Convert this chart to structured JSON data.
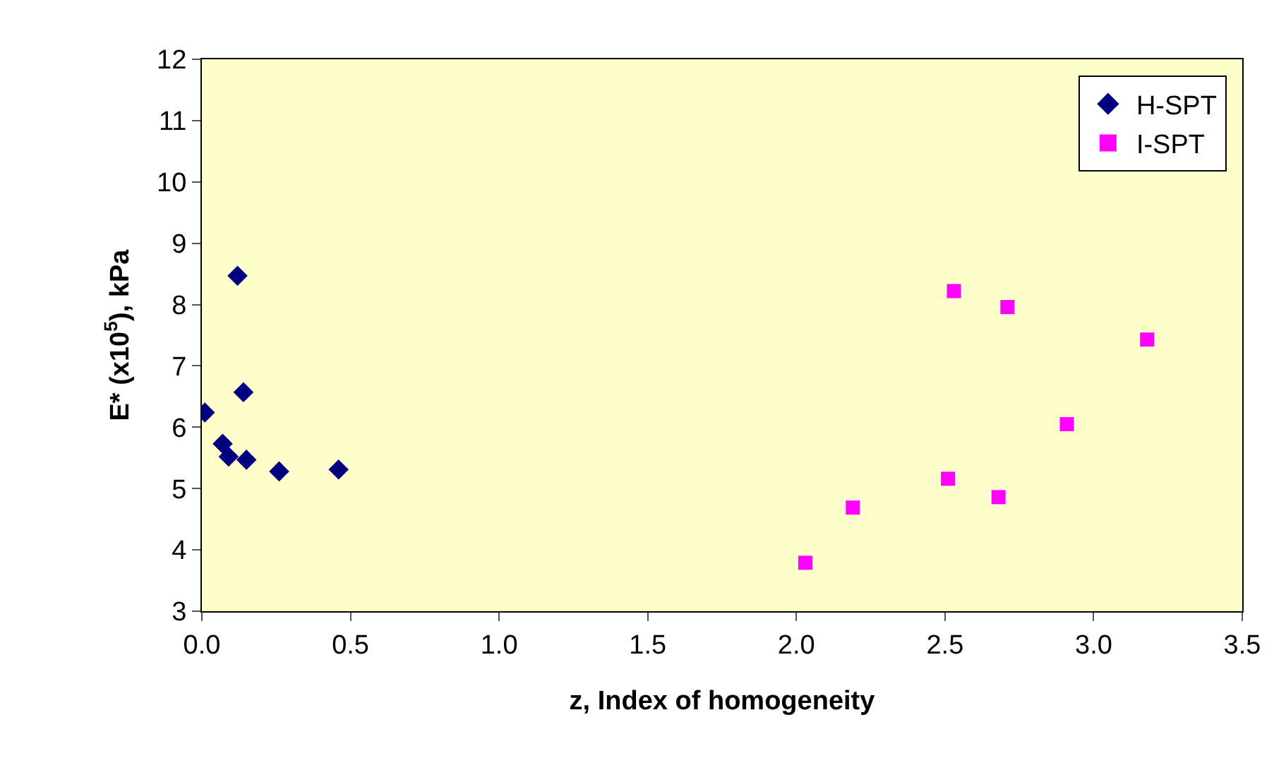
{
  "chart_data": {
    "type": "scatter",
    "xlabel": "z, Index of homogeneity",
    "ylabel": "E* (x10$^{5}$), kPa",
    "xlim": [
      0,
      3.5
    ],
    "xticks": [
      {
        "value": 0,
        "label": "0.0"
      },
      {
        "value": 0.5,
        "label": "0.5"
      },
      {
        "value": 1,
        "label": "1.0"
      },
      {
        "value": 1.5,
        "label": "1.5"
      },
      {
        "value": 2,
        "label": "2.0"
      },
      {
        "value": 2.5,
        "label": "2.5"
      },
      {
        "value": 3,
        "label": "3.0"
      },
      {
        "value": 3.5,
        "label": "3.5"
      }
    ],
    "ylim": [
      3,
      12
    ],
    "yticks": [
      3,
      4,
      5,
      6,
      7,
      8,
      9,
      10,
      11,
      12
    ],
    "grid": false,
    "legend": "top right",
    "series": [
      {
        "name": "H-SPT",
        "color": "#000080",
        "marker": "diamond",
        "x": [
          0.01,
          0.12,
          0.14,
          0.07,
          0.09,
          0.15,
          0.26,
          0.46
        ],
        "values": [
          6.24,
          8.47,
          6.57,
          5.73,
          5.52,
          5.47,
          5.28,
          5.31
        ]
      },
      {
        "name": "I-SPT",
        "color": "#ff00ff",
        "marker": "square",
        "x": [
          2.03,
          2.19,
          2.51,
          2.53,
          2.68,
          2.71,
          2.91,
          3.18
        ],
        "values": [
          3.79,
          4.69,
          5.16,
          8.22,
          4.86,
          7.96,
          6.05,
          7.43
        ]
      }
    ]
  }
}
